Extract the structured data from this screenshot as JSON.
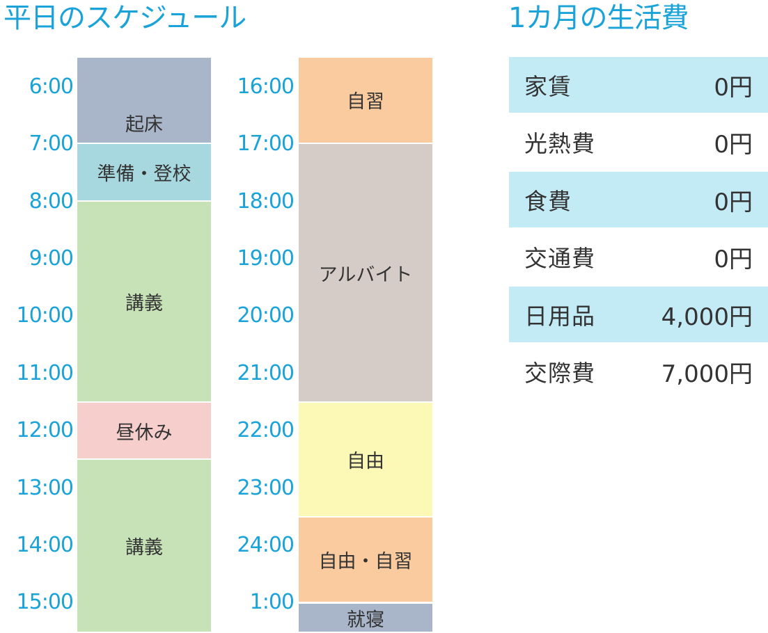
{
  "schedule": {
    "title": "平日のスケジュール",
    "left_times": [
      "6:00",
      "7:00",
      "8:00",
      "9:00",
      "10:00",
      "11:00",
      "12:00",
      "13:00",
      "14:00",
      "15:00"
    ],
    "right_times": [
      "16:00",
      "17:00",
      "18:00",
      "19:00",
      "20:00",
      "21:00",
      "22:00",
      "23:00",
      "24:00",
      "1:00"
    ],
    "left_blocks": [
      {
        "label": "起床",
        "color": "#a9b6c9"
      },
      {
        "label": "準備・登校",
        "color": "#a8d8df"
      },
      {
        "label": "講義",
        "color": "#c7e2b6"
      },
      {
        "label": "昼休み",
        "color": "#f6cfcd"
      },
      {
        "label": "講義",
        "color": "#c7e2b6"
      }
    ],
    "right_blocks": [
      {
        "label": "自習",
        "color": "#f9cb9e"
      },
      {
        "label": "アルバイト",
        "color": "#d6ccc7"
      },
      {
        "label": "自由",
        "color": "#fcf8b5"
      },
      {
        "label": "自由・自習",
        "color": "#f9cb9e"
      },
      {
        "label": "就寝",
        "color": "#a9b6c9"
      }
    ]
  },
  "budget": {
    "title": "1カ月の生活費",
    "stripe_color": "#c3ebf6",
    "rows": [
      {
        "label": "家賃",
        "amount": "0円"
      },
      {
        "label": "光熱費",
        "amount": "0円"
      },
      {
        "label": "食費",
        "amount": "0円"
      },
      {
        "label": "交通費",
        "amount": "0円"
      },
      {
        "label": "日用品",
        "amount": "4,000円"
      },
      {
        "label": "交際費",
        "amount": "7,000円"
      }
    ]
  }
}
